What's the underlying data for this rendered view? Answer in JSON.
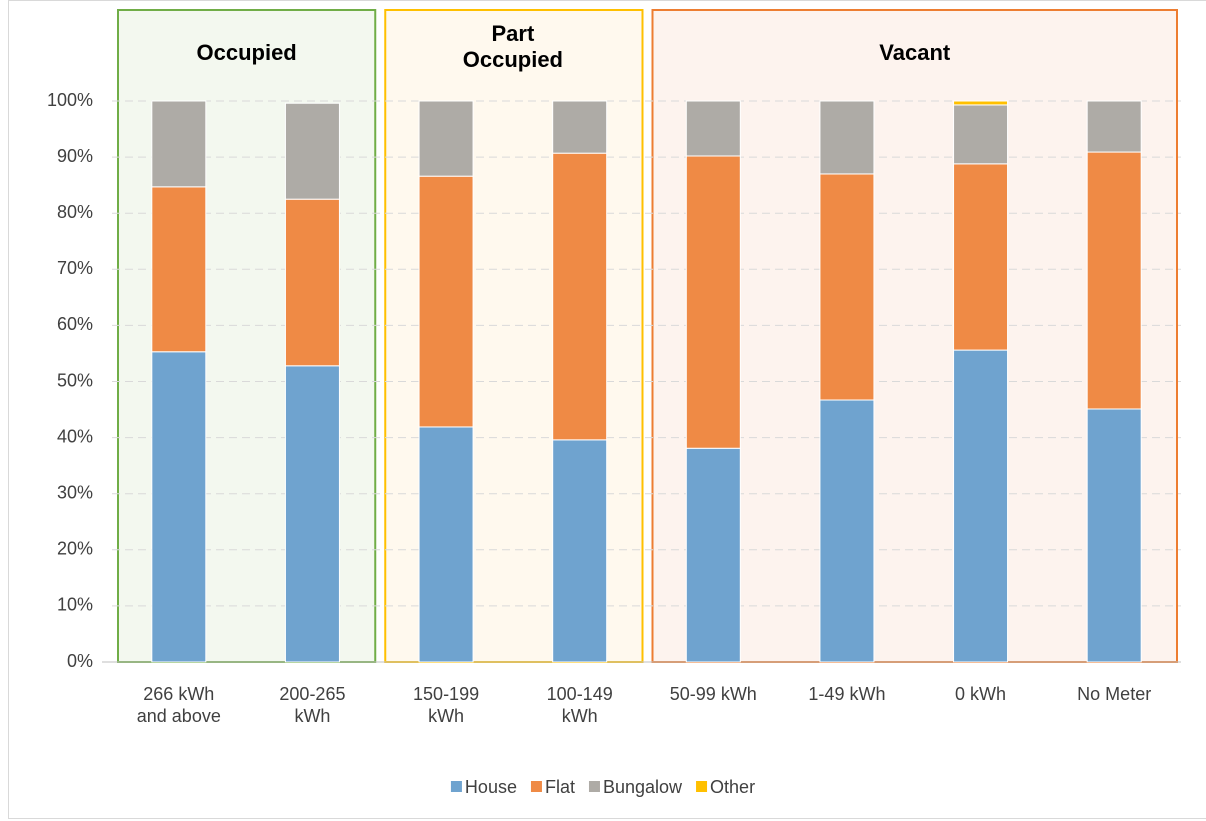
{
  "chart_data": {
    "type": "stacked_bar",
    "categories": [
      "266 kWh and above",
      "200-265 kWh",
      "150-199 kWh",
      "100-149 kWh",
      "50-99 kWh",
      "1-49 kWh",
      "0 kWh",
      "No Meter"
    ],
    "series": [
      {
        "name": "House",
        "color": "#6fa3cf",
        "values": [
          55.3,
          52.8,
          41.9,
          39.6,
          38.1,
          46.7,
          55.6,
          45.1
        ]
      },
      {
        "name": "Flat",
        "color": "#ef8a45",
        "values": [
          29.4,
          29.7,
          44.7,
          51.1,
          52.1,
          40.3,
          33.2,
          45.8
        ]
      },
      {
        "name": "Bungalow",
        "color": "#aeaba6",
        "values": [
          15.3,
          17.1,
          13.4,
          9.3,
          9.8,
          13.0,
          10.5,
          9.1
        ]
      },
      {
        "name": "Other",
        "color": "#ffc000",
        "values": [
          0,
          0,
          0,
          0,
          0,
          0,
          0.7,
          0
        ]
      }
    ],
    "groups": [
      {
        "label": "Occupied",
        "span": [
          0,
          1
        ],
        "color": "#70ad47",
        "fill": "#f3f8ef"
      },
      {
        "label": "Part Occupied",
        "span": [
          2,
          3
        ],
        "color": "#ffc000",
        "fill": "#fff9ee"
      },
      {
        "label": "Vacant",
        "span": [
          4,
          7
        ],
        "color": "#ed7d31",
        "fill": "#fdf3ee"
      }
    ],
    "ylim": [
      0,
      100
    ],
    "yticks": [
      {
        "value": 0,
        "label": "0%"
      },
      {
        "value": 10,
        "label": "10%"
      },
      {
        "value": 20,
        "label": "20%"
      },
      {
        "value": 30,
        "label": "30%"
      },
      {
        "value": 40,
        "label": "40%"
      },
      {
        "value": 50,
        "label": "50%"
      },
      {
        "value": 60,
        "label": "60%"
      },
      {
        "value": 70,
        "label": "70%"
      },
      {
        "value": 80,
        "label": "80%"
      },
      {
        "value": 90,
        "label": "90%"
      },
      {
        "value": 100,
        "label": "100%"
      }
    ],
    "grid": true,
    "legend": "bottom"
  }
}
